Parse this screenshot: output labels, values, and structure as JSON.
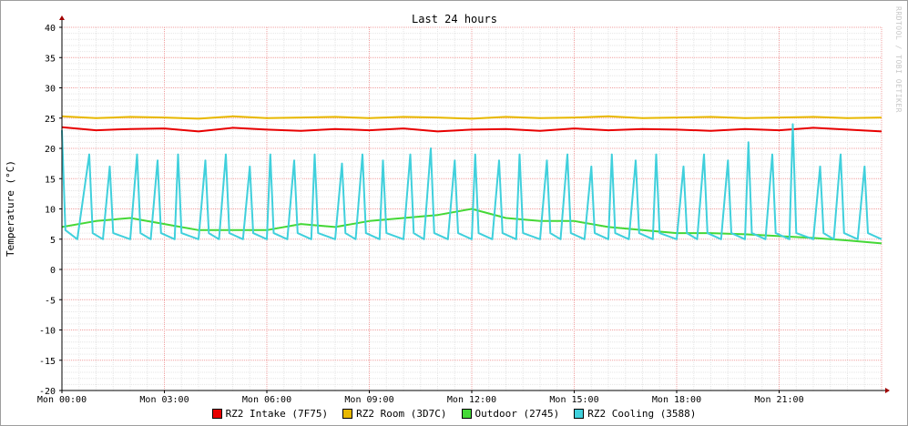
{
  "chart_data": {
    "type": "line",
    "title": "Last 24 hours",
    "xlabel": "",
    "ylabel": "Temperature (°C)",
    "credit": "RRDTOOL / TOBI OETIKER",
    "x_ticks": [
      "Mon 00:00",
      "Mon 03:00",
      "Mon 06:00",
      "Mon 09:00",
      "Mon 12:00",
      "Mon 15:00",
      "Mon 18:00",
      "Mon 21:00"
    ],
    "x_tick_hours": [
      0,
      3,
      6,
      9,
      12,
      15,
      18,
      21
    ],
    "xlim_hours": [
      0,
      24
    ],
    "y_ticks": [
      40,
      35,
      30,
      25,
      20,
      15,
      10,
      5,
      0,
      -5,
      -10,
      -15,
      -20
    ],
    "ylim": [
      -20,
      40
    ],
    "grid": true,
    "legend_position": "bottom",
    "series": [
      {
        "name": "RZ2 Intake (7F75)",
        "color": "#e80000",
        "x_hours": [
          0,
          1,
          2,
          3,
          4,
          5,
          6,
          7,
          8,
          9,
          10,
          11,
          12,
          13,
          14,
          15,
          16,
          17,
          18,
          19,
          20,
          21,
          22,
          23,
          24
        ],
        "values": [
          23.5,
          23.0,
          23.2,
          23.3,
          22.8,
          23.4,
          23.1,
          22.9,
          23.2,
          23.0,
          23.3,
          22.8,
          23.1,
          23.2,
          22.9,
          23.3,
          23.0,
          23.2,
          23.1,
          22.9,
          23.2,
          23.0,
          23.4,
          23.1,
          22.8
        ]
      },
      {
        "name": "RZ2 Room (3D7C)",
        "color": "#e8b800",
        "x_hours": [
          0,
          1,
          2,
          3,
          4,
          5,
          6,
          7,
          8,
          9,
          10,
          11,
          12,
          13,
          14,
          15,
          16,
          17,
          18,
          19,
          20,
          21,
          22,
          23,
          24
        ],
        "values": [
          25.3,
          25.0,
          25.2,
          25.1,
          24.9,
          25.3,
          25.0,
          25.1,
          25.2,
          25.0,
          25.2,
          25.1,
          24.9,
          25.2,
          25.0,
          25.1,
          25.3,
          25.0,
          25.1,
          25.2,
          25.0,
          25.1,
          25.2,
          25.0,
          25.1
        ]
      },
      {
        "name": "Outdoor (2745)",
        "color": "#44d836",
        "x_hours": [
          0,
          1,
          2,
          3,
          4,
          5,
          6,
          7,
          8,
          9,
          10,
          11,
          12,
          13,
          14,
          15,
          16,
          17,
          18,
          19,
          20,
          21,
          22,
          23,
          24
        ],
        "values": [
          7.0,
          8.0,
          8.5,
          7.5,
          6.5,
          6.5,
          6.5,
          7.5,
          7.0,
          8.0,
          8.5,
          9.0,
          10.0,
          8.5,
          8.0,
          8.0,
          7.0,
          6.5,
          6.0,
          6.0,
          5.8,
          5.5,
          5.2,
          4.8,
          4.3
        ]
      },
      {
        "name": "RZ2 Cooling (3588)",
        "color": "#40d0dc",
        "x_hours": [
          0.0,
          0.1,
          0.45,
          0.8,
          0.9,
          1.2,
          1.4,
          1.5,
          2.0,
          2.2,
          2.3,
          2.6,
          2.8,
          2.9,
          3.3,
          3.4,
          3.5,
          4.0,
          4.2,
          4.3,
          4.6,
          4.8,
          4.9,
          5.3,
          5.5,
          5.6,
          6.0,
          6.1,
          6.2,
          6.6,
          6.8,
          6.9,
          7.3,
          7.4,
          7.5,
          8.0,
          8.2,
          8.3,
          8.6,
          8.8,
          8.9,
          9.3,
          9.4,
          9.5,
          10.0,
          10.2,
          10.3,
          10.6,
          10.8,
          10.9,
          11.3,
          11.5,
          11.6,
          12.0,
          12.1,
          12.2,
          12.6,
          12.8,
          12.9,
          13.3,
          13.4,
          13.5,
          14.0,
          14.2,
          14.3,
          14.6,
          14.8,
          14.9,
          15.3,
          15.5,
          15.6,
          16.0,
          16.1,
          16.2,
          16.6,
          16.8,
          16.9,
          17.3,
          17.4,
          17.5,
          18.0,
          18.2,
          18.3,
          18.6,
          18.8,
          18.9,
          19.3,
          19.5,
          19.6,
          20.0,
          20.1,
          20.2,
          20.6,
          20.8,
          20.9,
          21.3,
          21.4,
          21.5,
          22.0,
          22.2,
          22.3,
          22.6,
          22.8,
          22.9,
          23.3,
          23.5,
          23.6,
          24.0
        ],
        "values": [
          23.0,
          6.5,
          5.0,
          19.0,
          6.0,
          5.0,
          17.0,
          6.0,
          5.0,
          19.0,
          6.0,
          5.0,
          18.0,
          6.0,
          5.0,
          19.0,
          6.0,
          5.0,
          18.0,
          6.0,
          5.0,
          19.0,
          6.0,
          5.0,
          17.0,
          6.0,
          5.0,
          19.0,
          6.0,
          5.0,
          18.0,
          6.0,
          5.0,
          19.0,
          6.0,
          5.0,
          17.5,
          6.0,
          5.0,
          19.0,
          6.0,
          5.0,
          18.0,
          6.0,
          5.0,
          19.0,
          6.0,
          5.0,
          20.0,
          6.0,
          5.0,
          18.0,
          6.0,
          5.0,
          19.0,
          6.0,
          5.0,
          18.0,
          6.0,
          5.0,
          19.0,
          6.0,
          5.0,
          18.0,
          6.0,
          5.0,
          19.0,
          6.0,
          5.0,
          17.0,
          6.0,
          5.0,
          19.0,
          6.0,
          5.0,
          18.0,
          6.0,
          5.0,
          19.0,
          6.0,
          5.0,
          17.0,
          6.0,
          5.0,
          19.0,
          6.0,
          5.0,
          18.0,
          6.0,
          5.0,
          21.0,
          6.0,
          5.0,
          19.0,
          6.0,
          5.0,
          24.0,
          6.0,
          5.0,
          17.0,
          6.0,
          5.0,
          19.0,
          6.0,
          5.0,
          17.0,
          6.0,
          5.0
        ]
      }
    ]
  }
}
